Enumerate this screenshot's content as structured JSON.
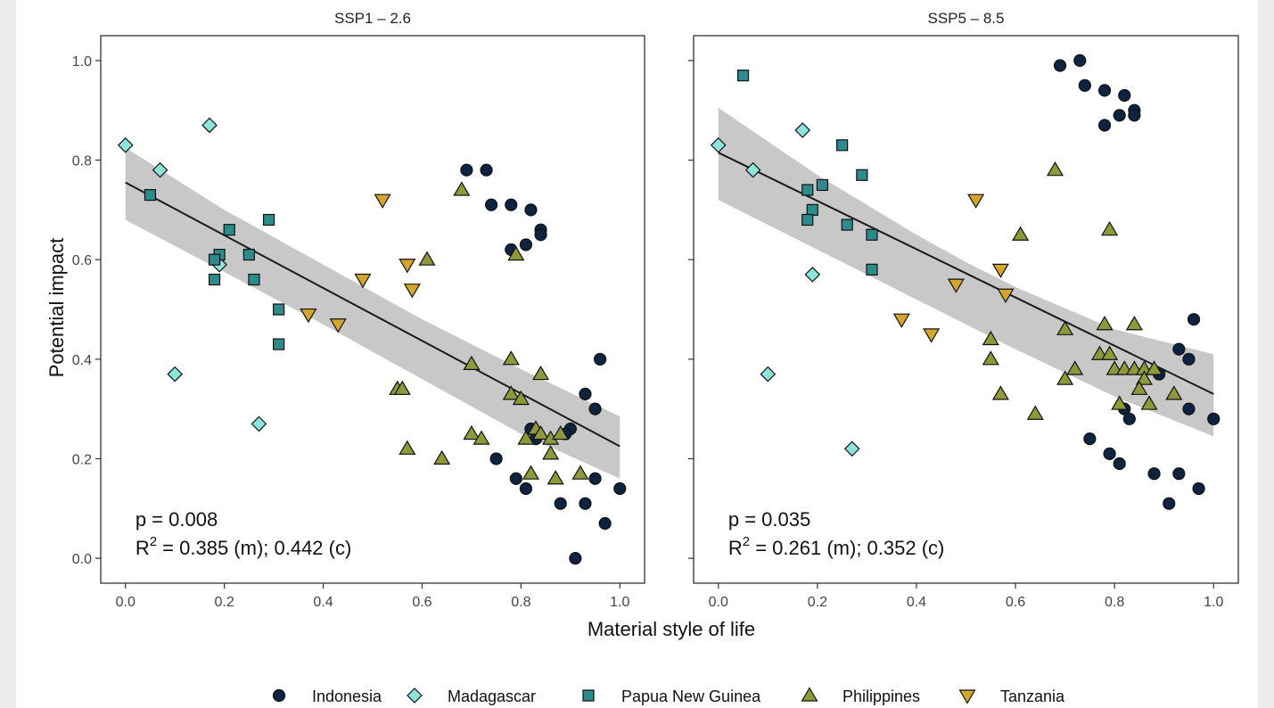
{
  "chart_data": {
    "type": "scatter",
    "xlabel": "Material style of life",
    "ylabel": "Potential impact",
    "xlim": [
      -0.05,
      1.05
    ],
    "ylim": [
      -0.05,
      1.05
    ],
    "xticks": [
      0.0,
      0.2,
      0.4,
      0.6,
      0.8,
      1.0
    ],
    "yticks": [
      0.0,
      0.2,
      0.4,
      0.6,
      0.8,
      1.0
    ],
    "xtick_labels": [
      "0.0",
      "0.2",
      "0.4",
      "0.6",
      "0.8",
      "1.0"
    ],
    "ytick_labels": [
      "0.0",
      "0.2",
      "0.4",
      "0.6",
      "0.8",
      "1.0"
    ],
    "grid": false,
    "legend_placement": "bottom",
    "legend": [
      {
        "name": "Indonesia",
        "shape": "circle",
        "color": "#0d2340"
      },
      {
        "name": "Madagascar",
        "shape": "diamond",
        "color": "#8fe3dd"
      },
      {
        "name": "Papua New Guinea",
        "shape": "square",
        "color": "#2e8b8b"
      },
      {
        "name": "Philippines",
        "shape": "triangle-up",
        "color": "#8e9a3a"
      },
      {
        "name": "Tanzania",
        "shape": "triangle-down",
        "color": "#d4a72c"
      }
    ],
    "panels": [
      {
        "title": "SSP1 – 2.6",
        "stat_p": "p = 0.008",
        "stat_r2_prefix": "R",
        "stat_r2_sup": "2",
        "stat_r2_rest": " = 0.385 (m); 0.442 (c)",
        "fit": {
          "x": [
            0.0,
            1.0
          ],
          "y": [
            0.755,
            0.225
          ]
        },
        "band": {
          "x": [
            0.0,
            0.2,
            0.4,
            0.5,
            0.6,
            0.8,
            1.0
          ],
          "upper": [
            0.825,
            0.7,
            0.59,
            0.535,
            0.48,
            0.38,
            0.285
          ],
          "lower": [
            0.68,
            0.575,
            0.47,
            0.415,
            0.36,
            0.25,
            0.16
          ]
        },
        "series": [
          {
            "name": "Indonesia",
            "points": [
              [
                0.69,
                0.78
              ],
              [
                0.73,
                0.78
              ],
              [
                0.74,
                0.71
              ],
              [
                0.78,
                0.71
              ],
              [
                0.82,
                0.7
              ],
              [
                0.84,
                0.66
              ],
              [
                0.84,
                0.65
              ],
              [
                0.78,
                0.62
              ],
              [
                0.81,
                0.63
              ],
              [
                0.96,
                0.4
              ],
              [
                0.93,
                0.33
              ],
              [
                0.95,
                0.3
              ],
              [
                0.82,
                0.26
              ],
              [
                0.83,
                0.24
              ],
              [
                0.9,
                0.26
              ],
              [
                0.89,
                0.25
              ],
              [
                0.75,
                0.2
              ],
              [
                0.79,
                0.16
              ],
              [
                0.81,
                0.14
              ],
              [
                0.95,
                0.16
              ],
              [
                1.0,
                0.14
              ],
              [
                0.88,
                0.11
              ],
              [
                0.93,
                0.11
              ],
              [
                0.97,
                0.07
              ],
              [
                0.91,
                0.0
              ]
            ]
          },
          {
            "name": "Madagascar",
            "points": [
              [
                0.0,
                0.83
              ],
              [
                0.17,
                0.87
              ],
              [
                0.07,
                0.78
              ],
              [
                0.19,
                0.59
              ],
              [
                0.1,
                0.37
              ],
              [
                0.27,
                0.27
              ]
            ]
          },
          {
            "name": "Papua New Guinea",
            "points": [
              [
                0.05,
                0.73
              ],
              [
                0.21,
                0.66
              ],
              [
                0.29,
                0.68
              ],
              [
                0.19,
                0.61
              ],
              [
                0.18,
                0.6
              ],
              [
                0.25,
                0.61
              ],
              [
                0.18,
                0.56
              ],
              [
                0.26,
                0.56
              ],
              [
                0.31,
                0.5
              ],
              [
                0.31,
                0.43
              ]
            ]
          },
          {
            "name": "Philippines",
            "points": [
              [
                0.68,
                0.74
              ],
              [
                0.61,
                0.6
              ],
              [
                0.79,
                0.61
              ],
              [
                0.55,
                0.34
              ],
              [
                0.56,
                0.34
              ],
              [
                0.7,
                0.39
              ],
              [
                0.78,
                0.4
              ],
              [
                0.84,
                0.37
              ],
              [
                0.78,
                0.33
              ],
              [
                0.8,
                0.32
              ],
              [
                0.7,
                0.25
              ],
              [
                0.72,
                0.24
              ],
              [
                0.81,
                0.24
              ],
              [
                0.83,
                0.26
              ],
              [
                0.84,
                0.25
              ],
              [
                0.86,
                0.24
              ],
              [
                0.88,
                0.25
              ],
              [
                0.57,
                0.22
              ],
              [
                0.64,
                0.2
              ],
              [
                0.86,
                0.21
              ],
              [
                0.82,
                0.17
              ],
              [
                0.87,
                0.16
              ],
              [
                0.92,
                0.17
              ]
            ]
          },
          {
            "name": "Tanzania",
            "points": [
              [
                0.52,
                0.72
              ],
              [
                0.57,
                0.59
              ],
              [
                0.58,
                0.54
              ],
              [
                0.48,
                0.56
              ],
              [
                0.37,
                0.49
              ],
              [
                0.43,
                0.47
              ]
            ]
          }
        ]
      },
      {
        "title": "SSP5 – 8.5",
        "stat_p": "p = 0.035",
        "stat_r2_prefix": "R",
        "stat_r2_sup": "2",
        "stat_r2_rest": " = 0.261 (m); 0.352 (c)",
        "fit": {
          "x": [
            0.0,
            1.0
          ],
          "y": [
            0.815,
            0.33
          ]
        },
        "band": {
          "x": [
            0.0,
            0.2,
            0.4,
            0.5,
            0.6,
            0.8,
            1.0
          ],
          "upper": [
            0.905,
            0.77,
            0.65,
            0.595,
            0.545,
            0.46,
            0.41
          ],
          "lower": [
            0.72,
            0.62,
            0.52,
            0.47,
            0.42,
            0.325,
            0.245
          ]
        },
        "series": [
          {
            "name": "Indonesia",
            "points": [
              [
                0.69,
                0.99
              ],
              [
                0.73,
                1.0
              ],
              [
                0.74,
                0.95
              ],
              [
                0.78,
                0.94
              ],
              [
                0.82,
                0.93
              ],
              [
                0.84,
                0.9
              ],
              [
                0.84,
                0.89
              ],
              [
                0.81,
                0.89
              ],
              [
                0.78,
                0.87
              ],
              [
                0.96,
                0.48
              ],
              [
                0.93,
                0.42
              ],
              [
                0.95,
                0.4
              ],
              [
                0.89,
                0.37
              ],
              [
                0.95,
                0.3
              ],
              [
                1.0,
                0.28
              ],
              [
                0.82,
                0.3
              ],
              [
                0.83,
                0.28
              ],
              [
                0.75,
                0.24
              ],
              [
                0.79,
                0.21
              ],
              [
                0.81,
                0.19
              ],
              [
                0.88,
                0.17
              ],
              [
                0.93,
                0.17
              ],
              [
                0.97,
                0.14
              ],
              [
                0.91,
                0.11
              ]
            ]
          },
          {
            "name": "Madagascar",
            "points": [
              [
                0.0,
                0.83
              ],
              [
                0.17,
                0.86
              ],
              [
                0.07,
                0.78
              ],
              [
                0.19,
                0.57
              ],
              [
                0.1,
                0.37
              ],
              [
                0.27,
                0.22
              ]
            ]
          },
          {
            "name": "Papua New Guinea",
            "points": [
              [
                0.05,
                0.97
              ],
              [
                0.25,
                0.83
              ],
              [
                0.29,
                0.77
              ],
              [
                0.21,
                0.75
              ],
              [
                0.18,
                0.74
              ],
              [
                0.19,
                0.7
              ],
              [
                0.18,
                0.68
              ],
              [
                0.26,
                0.67
              ],
              [
                0.31,
                0.65
              ],
              [
                0.31,
                0.58
              ]
            ]
          },
          {
            "name": "Philippines",
            "points": [
              [
                0.68,
                0.78
              ],
              [
                0.79,
                0.66
              ],
              [
                0.61,
                0.65
              ],
              [
                0.78,
                0.47
              ],
              [
                0.84,
                0.47
              ],
              [
                0.7,
                0.46
              ],
              [
                0.55,
                0.44
              ],
              [
                0.77,
                0.41
              ],
              [
                0.79,
                0.41
              ],
              [
                0.55,
                0.4
              ],
              [
                0.72,
                0.38
              ],
              [
                0.8,
                0.38
              ],
              [
                0.82,
                0.38
              ],
              [
                0.84,
                0.38
              ],
              [
                0.86,
                0.38
              ],
              [
                0.88,
                0.38
              ],
              [
                0.7,
                0.36
              ],
              [
                0.86,
                0.36
              ],
              [
                0.85,
                0.34
              ],
              [
                0.57,
                0.33
              ],
              [
                0.92,
                0.33
              ],
              [
                0.81,
                0.31
              ],
              [
                0.87,
                0.31
              ],
              [
                0.64,
                0.29
              ]
            ]
          },
          {
            "name": "Tanzania",
            "points": [
              [
                0.52,
                0.72
              ],
              [
                0.57,
                0.58
              ],
              [
                0.58,
                0.53
              ],
              [
                0.48,
                0.55
              ],
              [
                0.37,
                0.48
              ],
              [
                0.43,
                0.45
              ]
            ]
          }
        ]
      }
    ]
  },
  "colors": {
    "Indonesia": "#0d2340",
    "Madagascar": "#8fe3dd",
    "Papua New Guinea": "#2e8b8b",
    "Philippines": "#8e9a3a",
    "Tanzania": "#d4a72c",
    "band": "#c2c2c2",
    "fit": "#1a1a1a"
  }
}
